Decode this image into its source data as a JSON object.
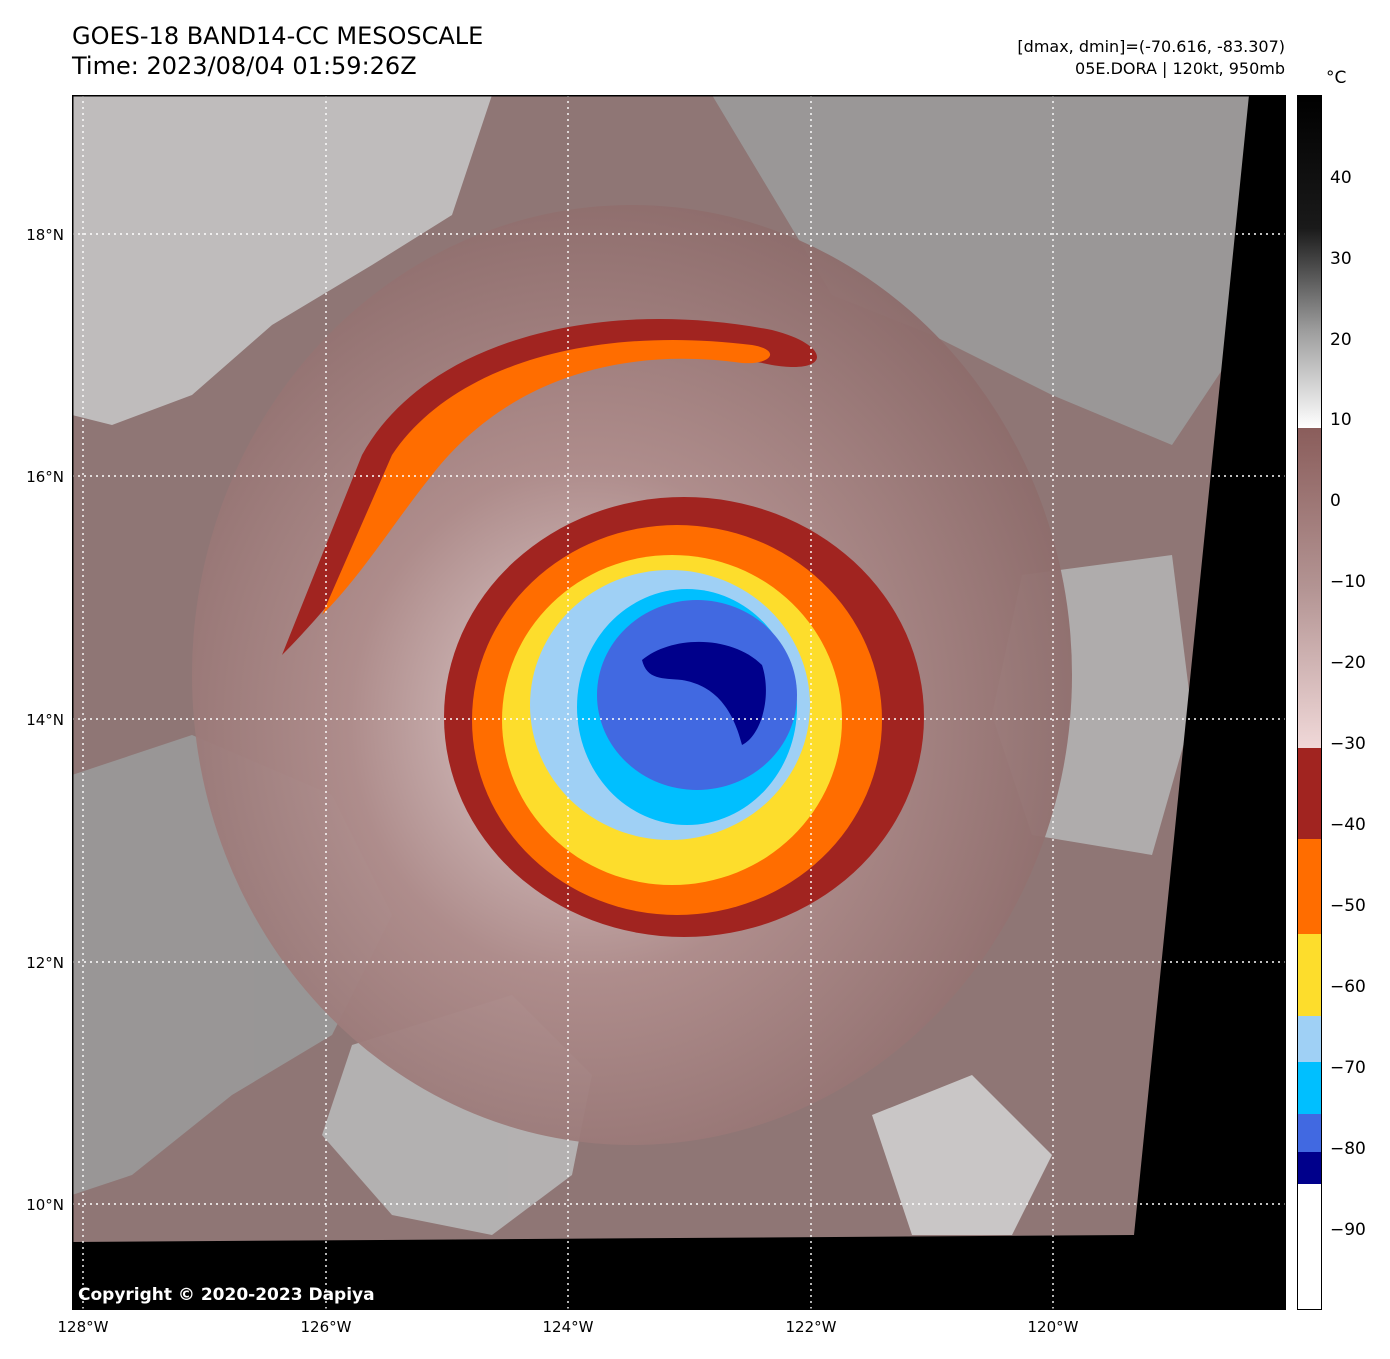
{
  "header": {
    "title_line1": "GOES-18 BAND14-CC MESOSCALE",
    "title_line2": "Time: 2023/08/04 01:59:26Z",
    "info_line1": "[dmax, dmin]=(-70.616, -83.307)",
    "info_line2": "05E.DORA | 120kt, 950mb"
  },
  "map": {
    "lat_labels": [
      "18°N",
      "16°N",
      "14°N",
      "12°N",
      "10°N"
    ],
    "lon_labels": [
      "128°W",
      "126°W",
      "124°W",
      "122°W",
      "120°W"
    ],
    "copyright": "Copyright © 2020-2023 Dapiya",
    "storm": {
      "name": "05E.DORA",
      "center_lon": -123.1,
      "center_lat": 14.1
    }
  },
  "colorbar": {
    "unit": "°C",
    "ticks": [
      "40",
      "30",
      "20",
      "10",
      "0",
      "−10",
      "−20",
      "−30",
      "−40",
      "−50",
      "−60",
      "−70",
      "−80",
      "−90"
    ],
    "colors": {
      "deep_navy": "#00008b",
      "royal_blue": "#4169e1",
      "cyan": "#00bfff",
      "light_blue": "#9fd0f5",
      "yellow": "#fddd2c",
      "orange": "#ff6d00",
      "dark_red": "#a12420",
      "pink": "#f0d8d8",
      "brown": "#8a5d5b"
    }
  }
}
